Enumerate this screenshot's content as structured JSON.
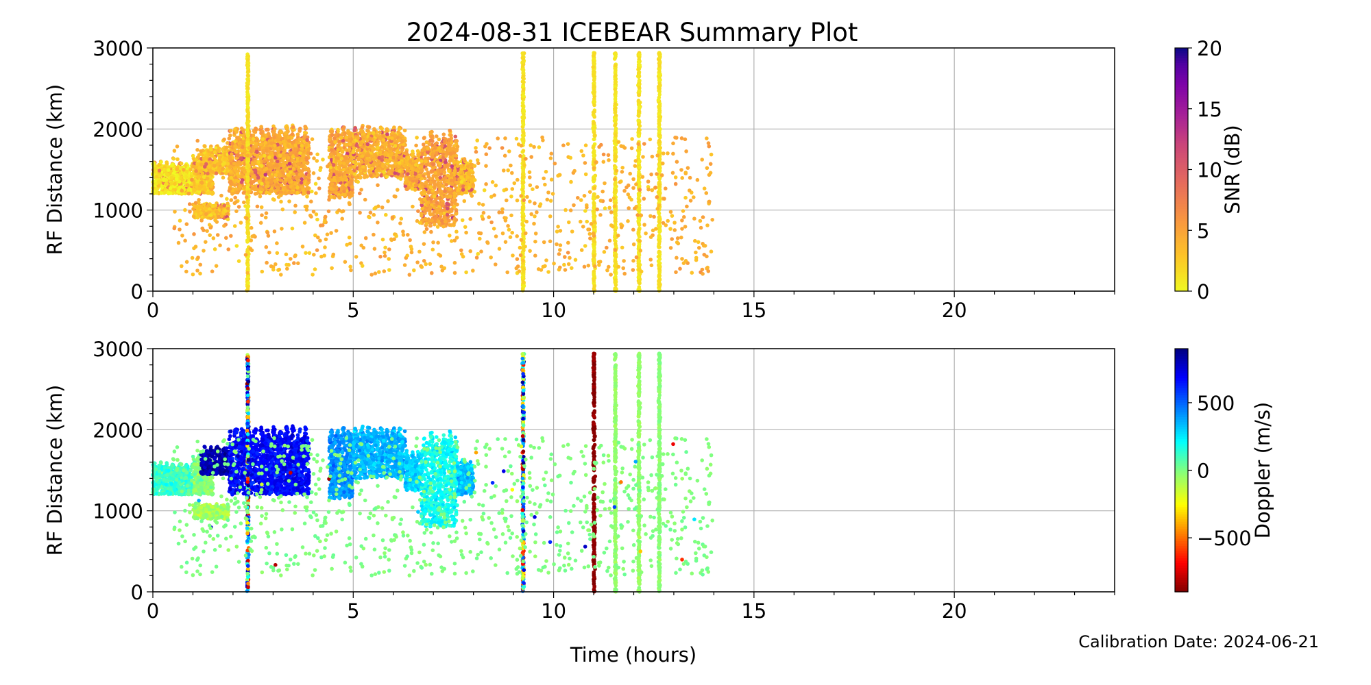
{
  "chart_data": {
    "type": "scatter",
    "title": "2024-08-31 ICEBEAR Summary Plot",
    "xlabel": "Time (hours)",
    "footer": "Calibration Date: 2024-06-21",
    "xlim": [
      0,
      24
    ],
    "x_ticks": [
      "0",
      "5",
      "10",
      "15",
      "20"
    ],
    "grid": true,
    "panels": [
      {
        "name": "snr",
        "ylabel": "RF Distance (km)",
        "ylim": [
          0,
          3000
        ],
        "y_ticks": [
          "0",
          "1000",
          "2000",
          "3000"
        ],
        "color_by": "snr",
        "colorbar": {
          "label": "SNR (dB)",
          "cmap": "plasma_r",
          "range": [
            0,
            20
          ],
          "ticks": [
            "0",
            "5",
            "10",
            "15",
            "20"
          ]
        }
      },
      {
        "name": "doppler",
        "ylabel": "RF Distance (km)",
        "ylim": [
          0,
          3000
        ],
        "y_ticks": [
          "0",
          "1000",
          "2000",
          "3000"
        ],
        "color_by": "doppler",
        "colorbar": {
          "label": "Doppler (m/s)",
          "cmap": "jet",
          "range": [
            -900,
            900
          ],
          "ticks": [
            "−500",
            "0",
            "500"
          ],
          "tick_values": [
            -500,
            0,
            500
          ]
        }
      }
    ],
    "clusters": [
      {
        "t": [
          0.0,
          1.0
        ],
        "r": [
          1200,
          1600
        ],
        "snr": 1.0,
        "doppler": 120,
        "n": 500
      },
      {
        "t": [
          1.0,
          1.5
        ],
        "r": [
          1200,
          1700
        ],
        "snr": 2.5,
        "doppler": 0,
        "n": 350
      },
      {
        "t": [
          1.2,
          1.9
        ],
        "r": [
          1450,
          1800
        ],
        "snr": 3.0,
        "doppler": 820,
        "n": 300
      },
      {
        "t": [
          1.0,
          1.9
        ],
        "r": [
          900,
          1100
        ],
        "snr": 3.0,
        "doppler": -80,
        "n": 260
      },
      {
        "t": [
          1.9,
          3.9
        ],
        "r": [
          1200,
          2050
        ],
        "snr": 4.5,
        "doppler": 680,
        "n": 1500
      },
      {
        "t": [
          4.4,
          5.0
        ],
        "r": [
          1150,
          2050
        ],
        "snr": 4.5,
        "doppler": 420,
        "n": 450
      },
      {
        "t": [
          5.0,
          6.3
        ],
        "r": [
          1400,
          2050
        ],
        "snr": 4.0,
        "doppler": 350,
        "n": 700
      },
      {
        "t": [
          6.3,
          6.7
        ],
        "r": [
          1250,
          1750
        ],
        "snr": 4.0,
        "doppler": 300,
        "n": 220
      },
      {
        "t": [
          6.7,
          7.6
        ],
        "r": [
          800,
          2000
        ],
        "snr": 5.0,
        "doppler": 200,
        "n": 650
      },
      {
        "t": [
          7.6,
          8.0
        ],
        "r": [
          1200,
          1650
        ],
        "snr": 3.5,
        "doppler": 320,
        "n": 180
      }
    ],
    "stripes": [
      {
        "t": 2.37,
        "r": [
          0,
          2950
        ],
        "snr": 0.5,
        "doppler": "mixed"
      },
      {
        "t": 9.24,
        "r": [
          0,
          2950
        ],
        "snr": 0.5,
        "doppler": "mixed"
      },
      {
        "t": 11.01,
        "r": [
          0,
          2950
        ],
        "snr": 0.5,
        "doppler": -880
      },
      {
        "t": 11.54,
        "r": [
          0,
          2950
        ],
        "snr": 0.5,
        "doppler": -40
      },
      {
        "t": 12.13,
        "r": [
          0,
          2950
        ],
        "snr": 0.5,
        "doppler": -40
      },
      {
        "t": 12.64,
        "r": [
          0,
          2950
        ],
        "snr": 0.5,
        "doppler": -20
      }
    ],
    "scatter": {
      "t": [
        0.5,
        14.0
      ],
      "r": [
        200,
        1900
      ],
      "snr": 4.0,
      "doppler": 0,
      "n": 900
    }
  },
  "colors": {
    "grid": "#b0b0b0",
    "axis": "#000000"
  }
}
